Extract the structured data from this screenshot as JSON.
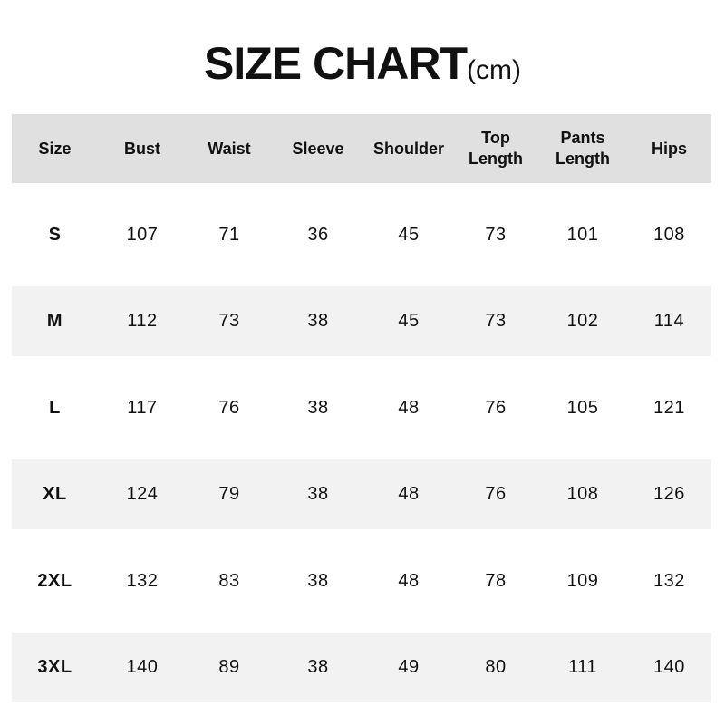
{
  "title": {
    "main": "SIZE CHART",
    "unit": "(cm)"
  },
  "headers": [
    "Size",
    "Bust",
    "Waist",
    "Sleeve",
    "Shoulder",
    "Top\nLength",
    "Pants\nLength",
    "Hips"
  ],
  "rows": [
    [
      "S",
      "107",
      "71",
      "36",
      "45",
      "73",
      "101",
      "108"
    ],
    [
      "M",
      "112",
      "73",
      "38",
      "45",
      "73",
      "102",
      "114"
    ],
    [
      "L",
      "117",
      "76",
      "38",
      "48",
      "76",
      "105",
      "121"
    ],
    [
      "XL",
      "124",
      "79",
      "38",
      "48",
      "76",
      "108",
      "126"
    ],
    [
      "2XL",
      "132",
      "83",
      "38",
      "48",
      "78",
      "109",
      "132"
    ],
    [
      "3XL",
      "140",
      "89",
      "38",
      "49",
      "80",
      "111",
      "140"
    ]
  ],
  "colors": {
    "header_bg": "#e0e0e0",
    "alt_row_bg": "#f2f2f2"
  }
}
